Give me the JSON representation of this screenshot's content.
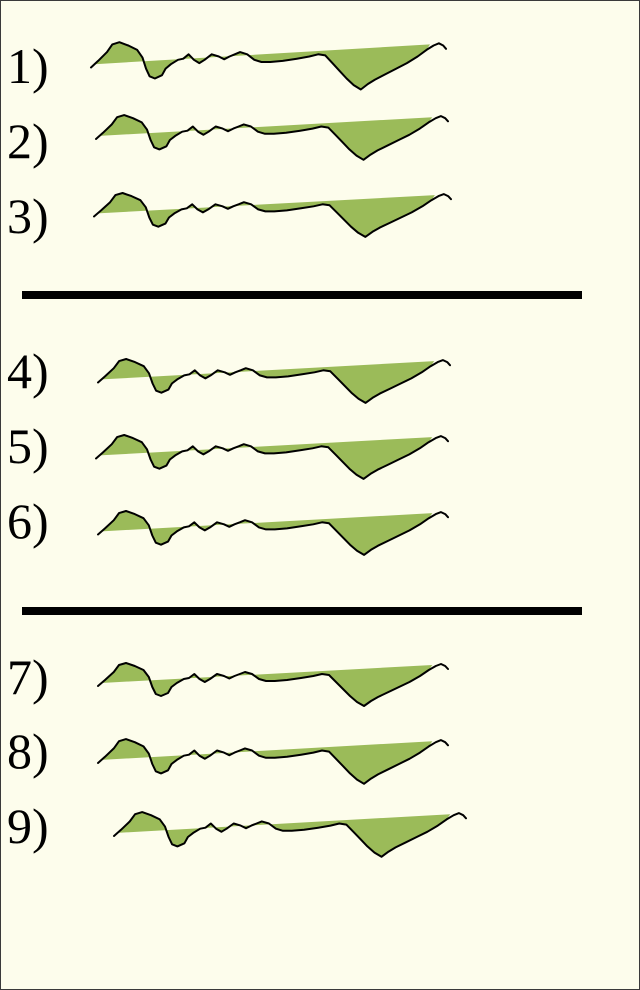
{
  "rows": [
    {
      "label": "1)"
    },
    {
      "label": "2)"
    },
    {
      "label": "3)"
    },
    {
      "label": "4)"
    },
    {
      "label": "5)"
    },
    {
      "label": "6)"
    },
    {
      "label": "7)"
    },
    {
      "label": "8)"
    },
    {
      "label": "9)"
    }
  ],
  "colors": {
    "background": "#fdfdec",
    "fill": "#9bbb59",
    "outline": "#000000",
    "divider": "#000000"
  }
}
